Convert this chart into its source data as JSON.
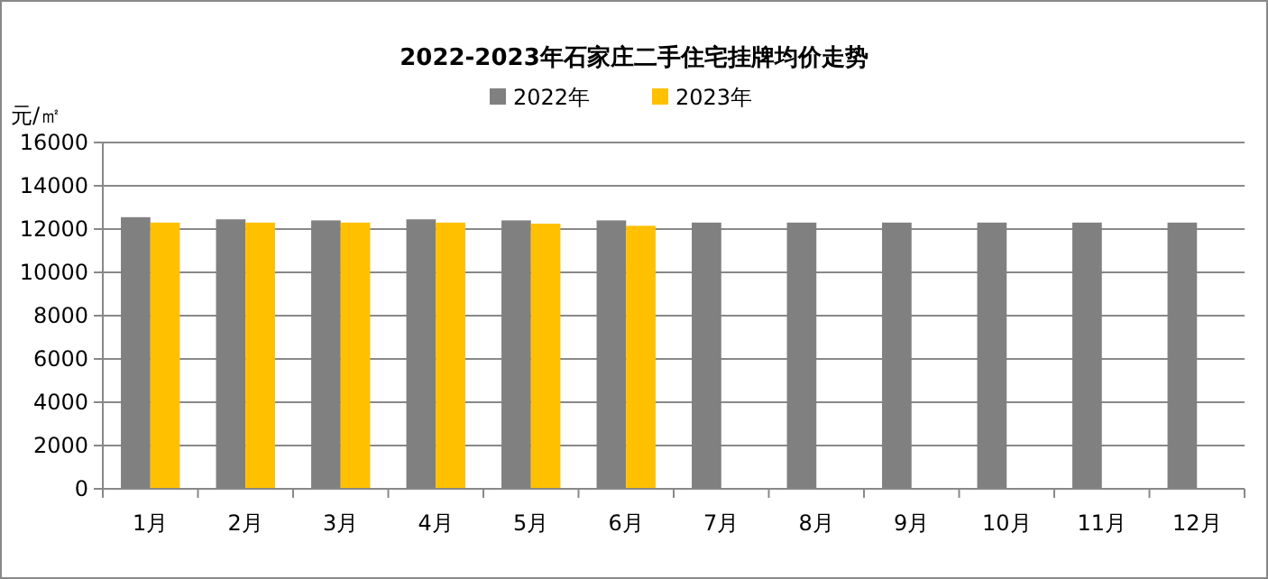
{
  "chart_data": {
    "type": "bar",
    "title": "2022-2023年石家庄二手住宅挂牌均价走势",
    "ylabel": "元/㎡",
    "categories": [
      "1月",
      "2月",
      "3月",
      "4月",
      "5月",
      "6月",
      "7月",
      "8月",
      "9月",
      "10月",
      "11月",
      "12月"
    ],
    "series": [
      {
        "name": "2022年",
        "color": "#808080",
        "values": [
          12550,
          12450,
          12400,
          12450,
          12400,
          12400,
          12300,
          12300,
          12300,
          12300,
          12300,
          12300
        ]
      },
      {
        "name": "2023年",
        "color": "#ffc000",
        "values": [
          12300,
          12300,
          12300,
          12300,
          12250,
          12150,
          null,
          null,
          null,
          null,
          null,
          null
        ]
      }
    ],
    "ylim": [
      0,
      16000
    ],
    "yticks": [
      0,
      2000,
      4000,
      6000,
      8000,
      10000,
      12000,
      14000,
      16000
    ],
    "grid": "y",
    "legend": "top"
  }
}
